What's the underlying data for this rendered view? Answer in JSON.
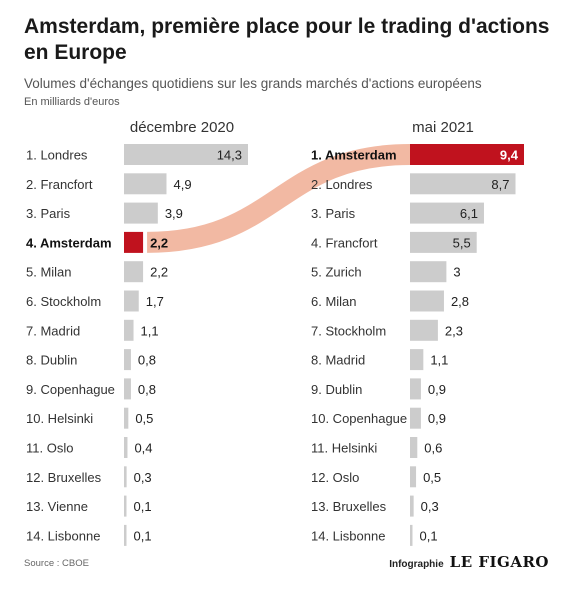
{
  "title": "Amsterdam, première place pour le trading d'actions en Europe",
  "subtitle": "Volumes d'échanges quotidiens sur les grands marchés d'actions européens",
  "unit": "En milliards d'euros",
  "source": "Source : CBOE",
  "credit": {
    "label": "Infographie",
    "brand": "LE FIGARO"
  },
  "colors": {
    "bar": "#cccccc",
    "highlight": "#c0121e",
    "link": "#f2b9a3"
  },
  "chart_data": {
    "type": "bar",
    "panels": [
      {
        "period": "décembre 2020",
        "rows": [
          {
            "rank": "1. Londres",
            "value": 14.3,
            "label": "14,3"
          },
          {
            "rank": "2. Francfort",
            "value": 4.9,
            "label": "4,9"
          },
          {
            "rank": "3. Paris",
            "value": 3.9,
            "label": "3,9"
          },
          {
            "rank": "4. Amsterdam",
            "value": 2.2,
            "label": "2,2",
            "highlight": true
          },
          {
            "rank": "5. Milan",
            "value": 2.2,
            "label": "2,2"
          },
          {
            "rank": "6. Stockholm",
            "value": 1.7,
            "label": "1,7"
          },
          {
            "rank": "7. Madrid",
            "value": 1.1,
            "label": "1,1"
          },
          {
            "rank": "8. Dublin",
            "value": 0.8,
            "label": "0,8"
          },
          {
            "rank": "9. Copenhague",
            "value": 0.8,
            "label": "0,8"
          },
          {
            "rank": "10. Helsinki",
            "value": 0.5,
            "label": "0,5"
          },
          {
            "rank": "11. Oslo",
            "value": 0.4,
            "label": "0,4"
          },
          {
            "rank": "12. Bruxelles",
            "value": 0.3,
            "label": "0,3"
          },
          {
            "rank": "13. Vienne",
            "value": 0.1,
            "label": "0,1"
          },
          {
            "rank": "14. Lisbonne",
            "value": 0.1,
            "label": "0,1"
          }
        ]
      },
      {
        "period": "mai 2021",
        "rows": [
          {
            "rank": "1. Amsterdam",
            "value": 9.4,
            "label": "9,4",
            "highlight": true
          },
          {
            "rank": "2. Londres",
            "value": 8.7,
            "label": "8,7"
          },
          {
            "rank": "3. Paris",
            "value": 6.1,
            "label": "6,1"
          },
          {
            "rank": "4. Francfort",
            "value": 5.5,
            "label": "5,5"
          },
          {
            "rank": "5. Zurich",
            "value": 3,
            "label": "3"
          },
          {
            "rank": "6. Milan",
            "value": 2.8,
            "label": "2,8"
          },
          {
            "rank": "7. Stockholm",
            "value": 2.3,
            "label": "2,3"
          },
          {
            "rank": "8. Madrid",
            "value": 1.1,
            "label": "1,1"
          },
          {
            "rank": "9. Dublin",
            "value": 0.9,
            "label": "0,9"
          },
          {
            "rank": "10. Copenhague",
            "value": 0.9,
            "label": "0,9"
          },
          {
            "rank": "11. Helsinki",
            "value": 0.6,
            "label": "0,6"
          },
          {
            "rank": "12. Oslo",
            "value": 0.5,
            "label": "0,5"
          },
          {
            "rank": "13. Bruxelles",
            "value": 0.3,
            "label": "0,3"
          },
          {
            "rank": "14. Lisbonne",
            "value": 0.1,
            "label": "0,1"
          }
        ]
      }
    ]
  }
}
